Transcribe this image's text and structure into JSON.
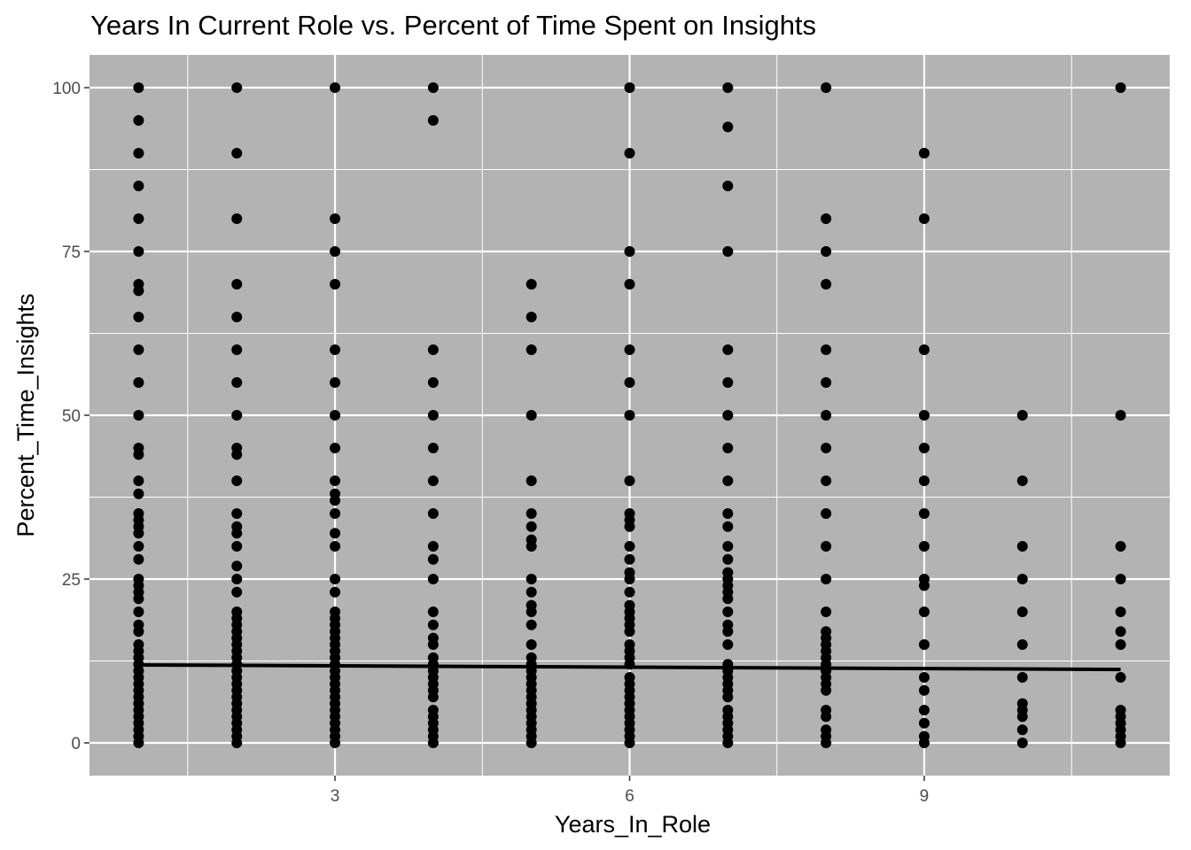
{
  "chart_data": {
    "type": "scatter",
    "title": "Years In Current Role vs. Percent of Time Spent on Insights",
    "xlabel": "Years_In_Role",
    "ylabel": "Percent_Time_Insights",
    "xlim": [
      0.5,
      11.5
    ],
    "ylim": [
      -5,
      105
    ],
    "x_ticks": [
      3,
      6,
      9
    ],
    "y_ticks": [
      0,
      25,
      50,
      75,
      100
    ],
    "grid": true,
    "panel_background": "#b3b3b3",
    "grid_color": "#ffffff",
    "point_color": "#000000",
    "points_by_x": [
      {
        "x": 1,
        "y": [
          100,
          95,
          90,
          85,
          80,
          75,
          70,
          69,
          65,
          60,
          55,
          50,
          45,
          44,
          40,
          38,
          35,
          34,
          33,
          32,
          30,
          28,
          25,
          24,
          23,
          22,
          20,
          18,
          17,
          15,
          14,
          13,
          12,
          11,
          10,
          9,
          8,
          7,
          6,
          5,
          4,
          3,
          2,
          1,
          0
        ]
      },
      {
        "x": 2,
        "y": [
          100,
          90,
          80,
          70,
          65,
          60,
          55,
          50,
          45,
          44,
          40,
          35,
          33,
          32,
          30,
          27,
          25,
          23,
          20,
          19,
          18,
          17,
          16,
          15,
          14,
          13,
          12,
          11,
          10,
          9,
          8,
          7,
          6,
          5,
          4,
          3,
          2,
          1,
          0
        ]
      },
      {
        "x": 3,
        "y": [
          100,
          80,
          75,
          70,
          60,
          55,
          50,
          45,
          40,
          38,
          37,
          35,
          32,
          30,
          25,
          23,
          20,
          19,
          18,
          17,
          16,
          15,
          14,
          13,
          12,
          11,
          10,
          9,
          8,
          7,
          6,
          5,
          4,
          3,
          2,
          1,
          0
        ]
      },
      {
        "x": 4,
        "y": [
          100,
          95,
          60,
          55,
          50,
          45,
          40,
          35,
          30,
          28,
          25,
          20,
          18,
          16,
          15,
          13,
          12,
          11,
          10,
          9,
          8,
          7,
          5,
          4,
          3,
          2,
          1,
          0
        ]
      },
      {
        "x": 5,
        "y": [
          70,
          65,
          60,
          50,
          40,
          35,
          33,
          31,
          30,
          25,
          23,
          21,
          20,
          18,
          15,
          13,
          12,
          11,
          10,
          9,
          8,
          7,
          6,
          5,
          4,
          3,
          2,
          1,
          0
        ]
      },
      {
        "x": 6,
        "y": [
          100,
          90,
          75,
          70,
          60,
          55,
          50,
          40,
          35,
          34,
          33,
          30,
          28,
          26,
          25,
          23,
          21,
          20,
          19,
          18,
          17,
          15,
          14,
          13,
          12,
          10,
          9,
          8,
          7,
          6,
          5,
          4,
          3,
          2,
          1,
          0
        ]
      },
      {
        "x": 7,
        "y": [
          100,
          94,
          85,
          75,
          60,
          55,
          50,
          45,
          40,
          35,
          33,
          30,
          28,
          26,
          25,
          24,
          23,
          22,
          20,
          18,
          17,
          15,
          12,
          11,
          10,
          9,
          8,
          7,
          5,
          4,
          3,
          2,
          1,
          0
        ]
      },
      {
        "x": 8,
        "y": [
          100,
          80,
          75,
          70,
          60,
          55,
          50,
          45,
          40,
          35,
          30,
          25,
          20,
          17,
          16,
          15,
          14,
          13,
          12,
          11,
          10,
          9,
          8,
          5,
          4,
          2,
          1,
          0
        ]
      },
      {
        "x": 9,
        "y": [
          90,
          80,
          60,
          50,
          45,
          40,
          35,
          30,
          25,
          24,
          20,
          15,
          10,
          8,
          5,
          3,
          1,
          0
        ]
      },
      {
        "x": 10,
        "y": [
          50,
          40,
          30,
          25,
          20,
          15,
          10,
          6,
          5,
          4,
          2,
          0
        ]
      },
      {
        "x": 11,
        "y": [
          100,
          50,
          30,
          25,
          20,
          17,
          15,
          10,
          5,
          4,
          3,
          2,
          1,
          0
        ]
      }
    ],
    "trend_line": {
      "x": [
        1,
        11
      ],
      "y": [
        11.9,
        11.2
      ],
      "color": "#000000"
    }
  }
}
